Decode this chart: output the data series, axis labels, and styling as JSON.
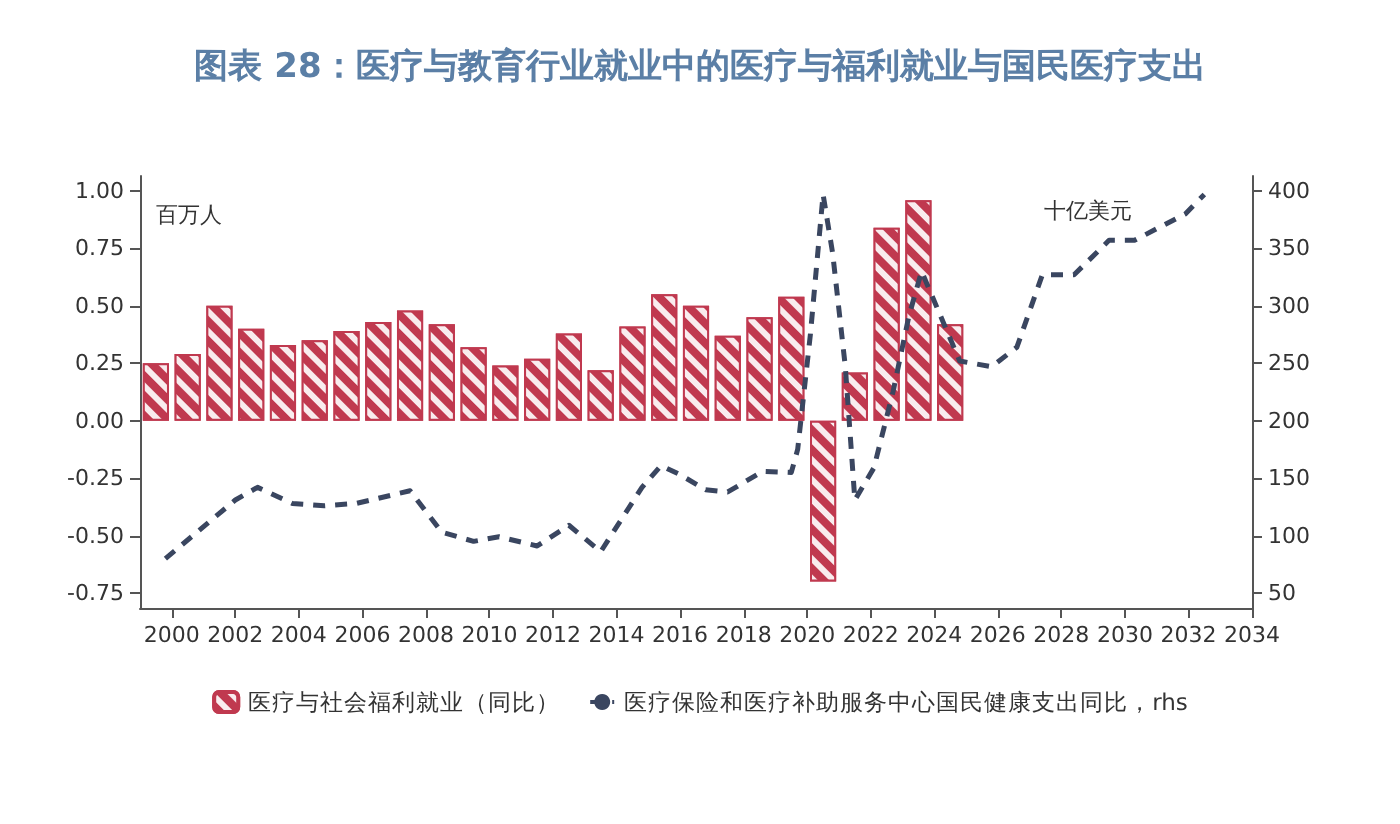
{
  "chart_data": {
    "type": "bar",
    "title": "图表 28：医疗与教育行业就业中的医疗与福利就业与国民医疗支出",
    "ylabel": "百万人",
    "y2label": "十亿美元",
    "xlim": [
      1999,
      2034
    ],
    "xticks": [
      2000,
      2002,
      2004,
      2006,
      2008,
      2010,
      2012,
      2014,
      2016,
      2018,
      2020,
      2022,
      2024,
      2026,
      2028,
      2030,
      2032,
      2034
    ],
    "ylim": [
      -0.815,
      1.065
    ],
    "yticks": [
      {
        "value": -0.75,
        "label": "-0.75"
      },
      {
        "value": -0.5,
        "label": "-0.50"
      },
      {
        "value": -0.25,
        "label": "-0.25"
      },
      {
        "value": 0,
        "label": "0.00"
      },
      {
        "value": 0.25,
        "label": "0.25"
      },
      {
        "value": 0.5,
        "label": "0.50"
      },
      {
        "value": 0.75,
        "label": "0.75"
      },
      {
        "value": 1,
        "label": "1.00"
      }
    ],
    "y2lim": [
      37,
      413
    ],
    "y2ticks": [
      50,
      100,
      150,
      200,
      250,
      300,
      350,
      400
    ],
    "grid": false,
    "legend": "bottom",
    "series": [
      {
        "name": "医疗与社会福利就业（同比）",
        "color": "#c0394f",
        "x": [
          1999.5,
          2000.5,
          2001.5,
          2002.5,
          2003.5,
          2004.5,
          2005.5,
          2006.5,
          2007.5,
          2008.5,
          2009.5,
          2010.5,
          2011.5,
          2012.5,
          2013.5,
          2014.5,
          2015.5,
          2016.5,
          2017.5,
          2018.5,
          2019.5,
          2020.5,
          2021.5,
          2022.5,
          2023.5,
          2024.5
        ],
        "values": [
          0.25,
          0.29,
          0.5,
          0.4,
          0.33,
          0.35,
          0.39,
          0.43,
          0.48,
          0.42,
          0.32,
          0.24,
          0.27,
          0.38,
          0.22,
          0.41,
          0.55,
          0.5,
          0.37,
          0.45,
          0.54,
          -0.7,
          0.21,
          0.84,
          0.96,
          0.42
        ]
      },
      {
        "type": "line",
        "axis": "y2",
        "name": "医疗保险和医疗补助服务中心国民健康支出同比，rhs",
        "color": "#3a4660",
        "line_style": "dashed",
        "marker": "none",
        "x": [
          1999.8,
          2002.0,
          2002.7,
          2003.8,
          2004.8,
          2005.8,
          2007.5,
          2008.5,
          2009.5,
          2010.3,
          2011.5,
          2012.5,
          2013.5,
          2014.8,
          2015.4,
          2016.0,
          2016.8,
          2017.5,
          2018.6,
          2019.5,
          2019.7,
          2020.1,
          2020.5,
          2020.8,
          2021.2,
          2021.5,
          2022.1,
          2022.7,
          2023.2,
          2023.6,
          2024.2,
          2024.8,
          2025.8,
          2026.6,
          2027.4,
          2028.4,
          2029.5,
          2030.3,
          2031.9,
          2032.5
        ],
        "values": [
          80,
          131,
          142,
          128,
          126,
          128,
          139,
          103,
          95,
          99,
          91,
          109,
          86,
          142,
          161,
          153,
          140,
          138,
          156,
          155,
          175,
          275,
          397,
          346,
          247,
          131,
          159,
          225,
          291,
          330,
          291,
          252,
          247,
          264,
          327,
          327,
          357,
          357,
          380,
          397
        ]
      }
    ]
  }
}
